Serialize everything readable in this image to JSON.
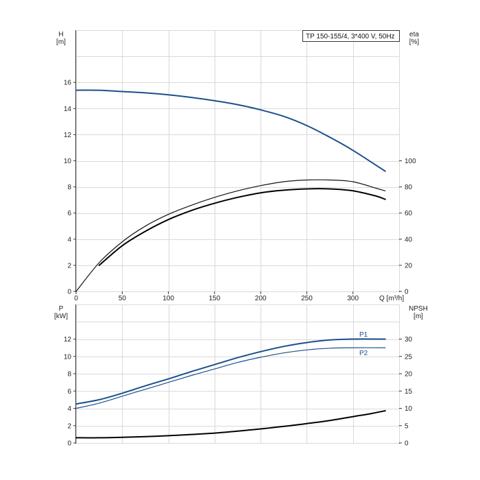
{
  "chart_data": [
    {
      "type": "line",
      "title": "TP 150-155/4, 3*400 V, 50Hz",
      "xlabel": "Q [m³/h]",
      "x_unit": "Q [m³/h]",
      "xlim": [
        0,
        350
      ],
      "x_ticks": [
        "0",
        "50",
        "100",
        "150",
        "200",
        "250",
        "300"
      ],
      "y_left": {
        "label": "H",
        "unit": "[m]",
        "lim": [
          0,
          20
        ],
        "ticks": [
          "0",
          "2",
          "4",
          "6",
          "8",
          "10",
          "12",
          "14",
          "16"
        ]
      },
      "y_right": {
        "label": "eta",
        "unit": "[%]",
        "lim": [
          0,
          200
        ],
        "ticks": [
          "0",
          "20",
          "40",
          "60",
          "80",
          "100"
        ]
      },
      "grid": true,
      "series": [
        {
          "axis": "left",
          "color": "#1a4f8b",
          "x": [
            0,
            25,
            50,
            75,
            100,
            125,
            150,
            175,
            200,
            225,
            250,
            275,
            300,
            335
          ],
          "y": [
            15.4,
            15.4,
            15.3,
            15.2,
            15.05,
            14.85,
            14.6,
            14.3,
            13.9,
            13.4,
            12.7,
            11.8,
            10.8,
            9.2
          ]
        },
        {
          "axis": "right",
          "color": "#111111",
          "x": [
            0,
            25,
            50,
            75,
            100,
            125,
            150,
            175,
            200,
            225,
            250,
            275,
            300,
            325,
            335
          ],
          "y": [
            0,
            22,
            38,
            50,
            59,
            66,
            72,
            77,
            81,
            84,
            85.3,
            85.3,
            84,
            79,
            77
          ]
        },
        {
          "axis": "right",
          "color": "#000000",
          "x": [
            25,
            50,
            75,
            100,
            125,
            150,
            175,
            200,
            225,
            250,
            275,
            300,
            325,
            335
          ],
          "y": [
            20,
            35,
            46,
            55,
            62,
            67.5,
            72,
            75.5,
            77.5,
            78.5,
            78.5,
            77,
            73,
            70.5
          ]
        }
      ]
    },
    {
      "type": "line",
      "xlim": [
        0,
        350
      ],
      "y_left": {
        "label": "P",
        "unit": "[kW]",
        "lim": [
          0,
          16
        ],
        "ticks": [
          "0",
          "2",
          "4",
          "6",
          "8",
          "10",
          "12"
        ]
      },
      "y_right": {
        "label": "NPSH",
        "unit": "[m]",
        "lim": [
          0,
          40
        ],
        "ticks": [
          "0",
          "5",
          "10",
          "15",
          "20",
          "25",
          "30"
        ]
      },
      "grid": true,
      "series": [
        {
          "name": "P1",
          "axis": "left",
          "color": "#1a4f8b",
          "x": [
            0,
            25,
            50,
            75,
            100,
            125,
            150,
            175,
            200,
            225,
            250,
            275,
            300,
            335
          ],
          "y": [
            4.5,
            5.0,
            5.75,
            6.6,
            7.4,
            8.25,
            9.05,
            9.85,
            10.55,
            11.15,
            11.6,
            11.9,
            12.0,
            12.0
          ]
        },
        {
          "name": "P2",
          "axis": "left",
          "color": "#1a4f8b",
          "x": [
            0,
            25,
            50,
            75,
            100,
            125,
            150,
            175,
            200,
            225,
            250,
            275,
            300,
            335
          ],
          "y": [
            4.0,
            4.6,
            5.4,
            6.2,
            7.0,
            7.8,
            8.55,
            9.3,
            9.9,
            10.4,
            10.75,
            10.95,
            11.0,
            11.0
          ]
        },
        {
          "axis": "right",
          "color": "#000000",
          "x": [
            0,
            25,
            50,
            75,
            100,
            125,
            150,
            175,
            200,
            225,
            250,
            275,
            300,
            320,
            335
          ],
          "y": [
            1.5,
            1.5,
            1.65,
            1.85,
            2.1,
            2.45,
            2.85,
            3.4,
            4.05,
            4.8,
            5.6,
            6.5,
            7.6,
            8.5,
            9.3
          ]
        }
      ]
    }
  ]
}
